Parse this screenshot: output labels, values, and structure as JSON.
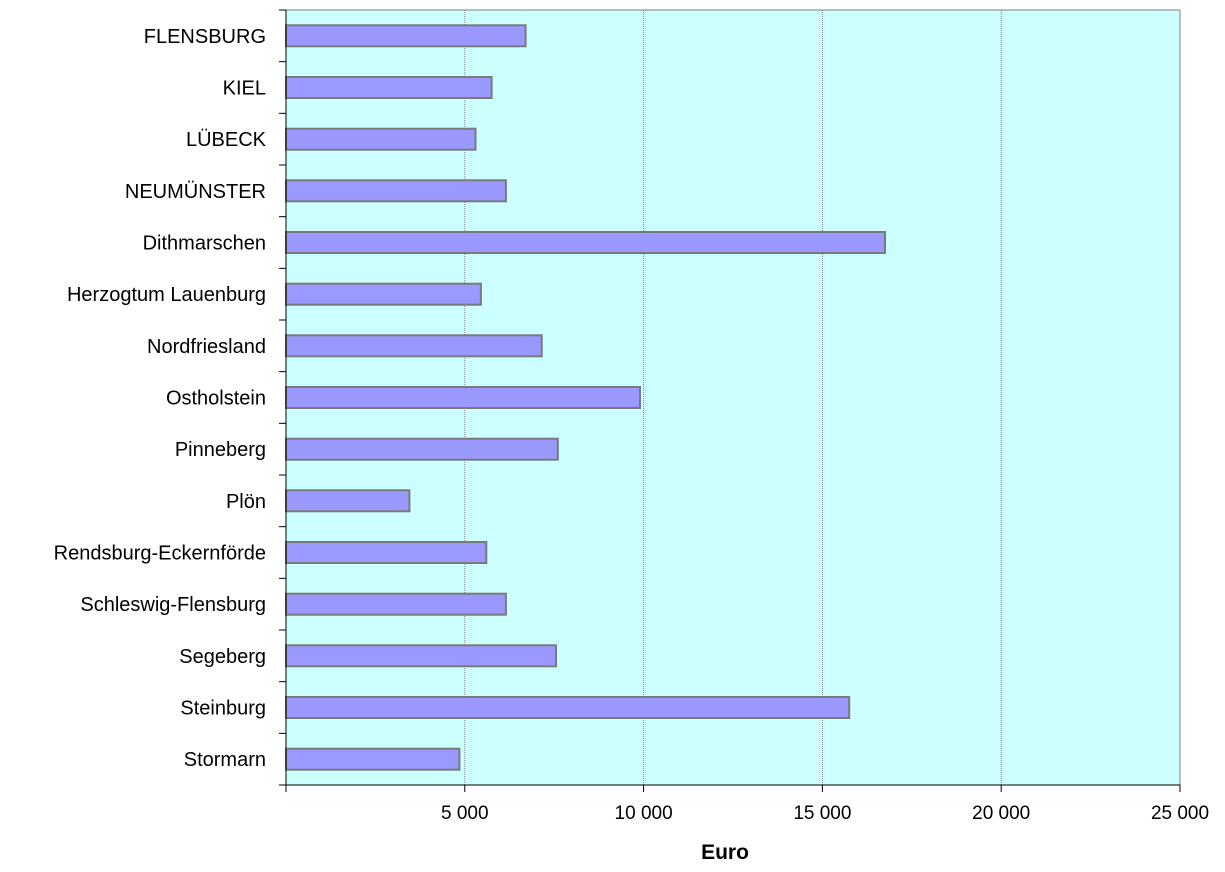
{
  "chart_data": {
    "type": "bar",
    "orientation": "horizontal",
    "title": "",
    "xlabel": "Euro",
    "ylabel": "",
    "xlim": [
      0,
      25000
    ],
    "xticks": [
      0,
      5000,
      10000,
      15000,
      20000,
      25000
    ],
    "xtick_labels": [
      "",
      "5 000",
      "10 000",
      "15 000",
      "20 000",
      "25 000"
    ],
    "categories": [
      "FLENSBURG",
      "KIEL",
      "LÜBECK",
      "NEUMÜNSTER",
      "Dithmarschen",
      "Herzogtum Lauenburg",
      "Nordfriesland",
      "Ostholstein",
      "Pinneberg",
      "Plön",
      "Rendsburg-Eckernförde",
      "Schleswig-Flensburg",
      "Segeberg",
      "Steinburg",
      "Stormarn"
    ],
    "values": [
      6700,
      5750,
      5300,
      6150,
      16750,
      5450,
      7150,
      9900,
      7600,
      3450,
      5600,
      6150,
      7550,
      15750,
      4850
    ],
    "grid": "vertical",
    "legend": "none",
    "colors": {
      "bar_fill": "#9999ff",
      "bar_stroke": "#7a7a7a",
      "plot_background": "#ccffff",
      "gridline": "#808080",
      "axis": "#000000"
    }
  }
}
